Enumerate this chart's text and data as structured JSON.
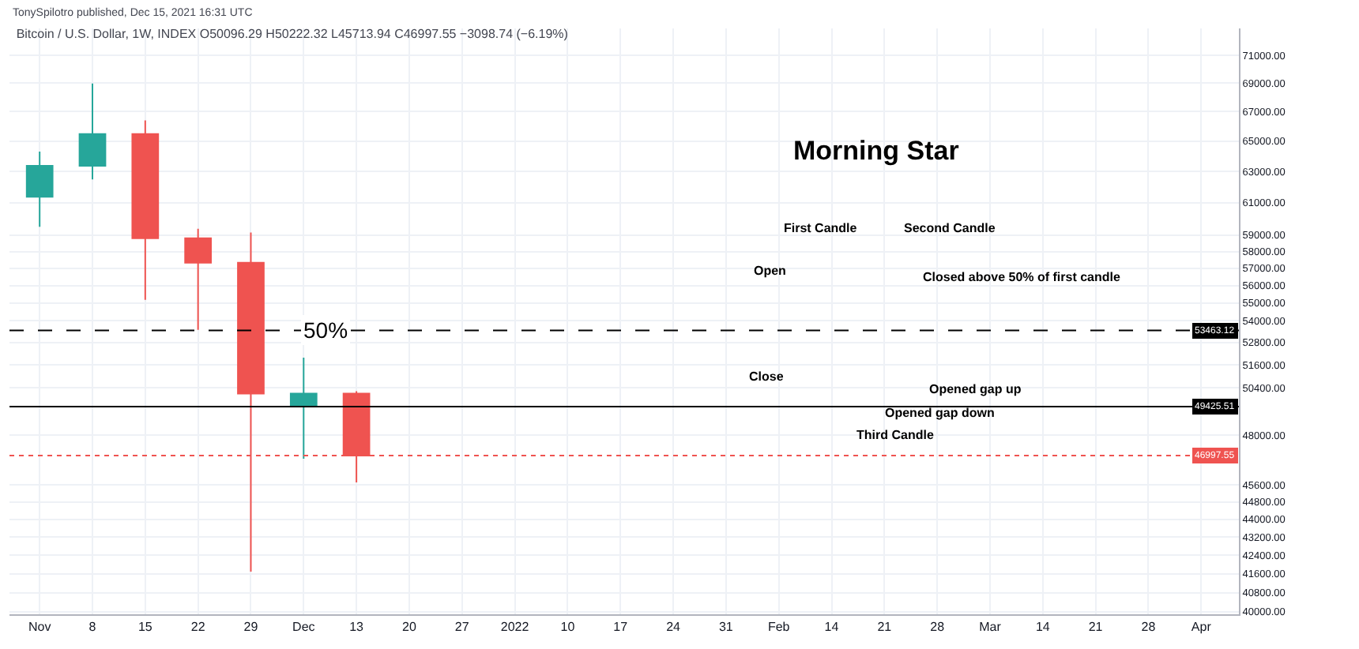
{
  "chart_data": {
    "type": "candlestick",
    "title": "Bitcoin / U.S. Dollar, 1W, INDEX O50096.29 H50222.32 L45713.94 C46997.55 −3098.74 (−6.19%)",
    "x": [
      "2021-11-01",
      "2021-11-08",
      "2021-11-15",
      "2021-11-22",
      "2021-11-29",
      "2021-12-06",
      "2021-12-13"
    ],
    "ohlc": [
      [
        61370,
        64300,
        59500,
        63360
      ],
      [
        63360,
        68970,
        62480,
        65470
      ],
      [
        65470,
        66390,
        55180,
        58800
      ],
      [
        58800,
        59380,
        53500,
        57330
      ],
      [
        57330,
        59150,
        41690,
        50096.29
      ],
      [
        49480,
        51990,
        46840,
        50096.29
      ],
      [
        50096.29,
        50222.32,
        45713.94,
        46997.55
      ]
    ],
    "colors": [
      "#26a69a",
      "#26a69a",
      "#ef5350",
      "#ef5350",
      "#ef5350",
      "#26a69a",
      "#ef5350"
    ],
    "log": "y",
    "xlim": [
      "2021-10-28",
      "2022-04-09"
    ],
    "xticks": [
      {
        "value": "2021-11-01",
        "label": "Nov"
      },
      {
        "value": "2021-11-08",
        "label": "8"
      },
      {
        "value": "2021-11-15",
        "label": "15"
      },
      {
        "value": "2021-11-22",
        "label": "22"
      },
      {
        "value": "2021-11-29",
        "label": "29"
      },
      {
        "value": "2021-12-06",
        "label": "Dec"
      },
      {
        "value": "2021-12-13",
        "label": "13"
      },
      {
        "value": "2021-12-20",
        "label": "20"
      },
      {
        "value": "2021-12-27",
        "label": "27"
      },
      {
        "value": "2022-01-03",
        "label": "2022"
      },
      {
        "value": "2022-01-10",
        "label": "10"
      },
      {
        "value": "2022-01-17",
        "label": "17"
      },
      {
        "value": "2022-01-24",
        "label": "24"
      },
      {
        "value": "2022-01-31",
        "label": "31"
      },
      {
        "value": "2022-02-07",
        "label": "Feb"
      },
      {
        "value": "2022-02-14",
        "label": "14"
      },
      {
        "value": "2022-02-21",
        "label": "21"
      },
      {
        "value": "2022-02-28",
        "label": "28"
      },
      {
        "value": "2022-03-07",
        "label": "Mar"
      },
      {
        "value": "2022-03-14",
        "label": "14"
      },
      {
        "value": "2022-03-21",
        "label": "21"
      },
      {
        "value": "2022-03-28",
        "label": "28"
      },
      {
        "value": "2022-04-04",
        "label": "Apr"
      }
    ],
    "ylim": [
      39900,
      73000
    ],
    "yticks": [
      {
        "value": 71000,
        "label": "71000.00"
      },
      {
        "value": 69000,
        "label": "69000.00"
      },
      {
        "value": 67000,
        "label": "67000.00"
      },
      {
        "value": 65000,
        "label": "65000.00"
      },
      {
        "value": 63000,
        "label": "63000.00"
      },
      {
        "value": 61000,
        "label": "61000.00"
      },
      {
        "value": 59000,
        "label": "59000.00"
      },
      {
        "value": 58000,
        "label": "58000.00"
      },
      {
        "value": 57000,
        "label": "57000.00"
      },
      {
        "value": 56000,
        "label": "56000.00"
      },
      {
        "value": 55000,
        "label": "55000.00"
      },
      {
        "value": 54000,
        "label": "54000.00"
      },
      {
        "value": 52800,
        "label": "52800.00"
      },
      {
        "value": 51600,
        "label": "51600.00"
      },
      {
        "value": 50400,
        "label": "50400.00"
      },
      {
        "value": 48000,
        "label": "48000.00"
      },
      {
        "value": 45600,
        "label": "45600.00"
      },
      {
        "value": 44800,
        "label": "44800.00"
      },
      {
        "value": 44000,
        "label": "44000.00"
      },
      {
        "value": 43200,
        "label": "43200.00"
      },
      {
        "value": 42400,
        "label": "42400.00"
      },
      {
        "value": 41600,
        "label": "41600.00"
      },
      {
        "value": 40800,
        "label": "40800.00"
      },
      {
        "value": 40000,
        "label": "40000.00"
      }
    ],
    "grid": true,
    "ref_lines": [
      {
        "axis": "y",
        "value": 53463.12,
        "label": "53463.12",
        "color": "#000000",
        "line_style": "dashed"
      },
      {
        "axis": "y",
        "value": 49425.51,
        "label": "49425.51",
        "color": "#000000",
        "line_style": "solid"
      },
      {
        "axis": "y",
        "value": 46997.55,
        "label": "46997.55",
        "color": "#ef5350",
        "line_style": "dotted"
      }
    ],
    "annotations": [
      {
        "text": "50%",
        "x": "2021-12-09",
        "y": 53463.12
      },
      "TonySpilotro published, Dec 15, 2021 16:31 UTC",
      "Morning Star",
      "First Candle",
      "Second Candle",
      "Open",
      "Close",
      "Closed above 50% of first candle",
      "Opened gap up",
      "Opened gap down",
      "Third Candle"
    ]
  }
}
